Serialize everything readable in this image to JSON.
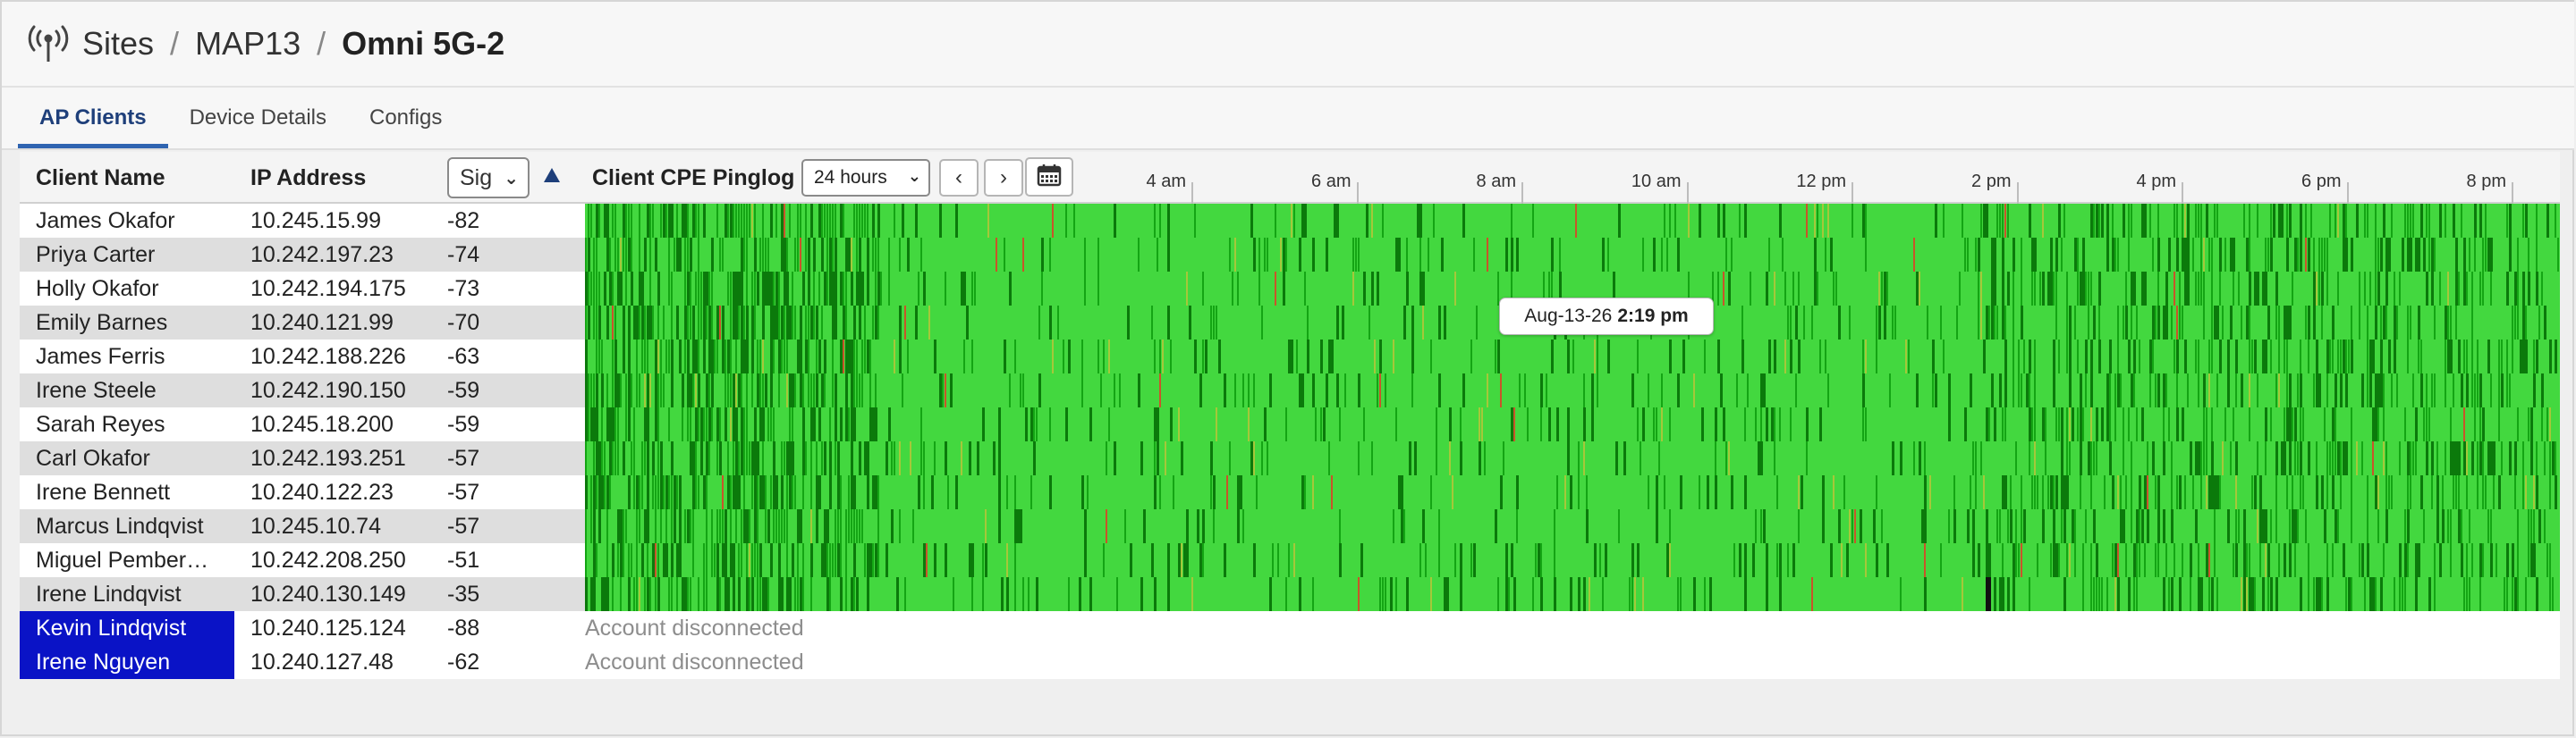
{
  "breadcrumb": {
    "icon": "wifi-antenna-icon",
    "items": [
      "Sites",
      "MAP13"
    ],
    "current": "Omni 5G-2",
    "separator": "/"
  },
  "tabs": [
    {
      "label": "AP Clients",
      "active": true
    },
    {
      "label": "Device Details",
      "active": false
    },
    {
      "label": "Configs",
      "active": false
    }
  ],
  "table": {
    "col_name": "Client Name",
    "col_ip": "IP Address",
    "col_sig_select": "Sig",
    "sort_direction": "ascending",
    "col_ping": "Client CPE Pinglog",
    "range_select": "24 hours",
    "prev_label": "‹",
    "next_label": "›",
    "calendar_icon": "calendar-icon"
  },
  "axis_ticks": [
    "4 am",
    "6 am",
    "8 am",
    "10 am",
    "12 pm",
    "2 pm",
    "4 pm",
    "6 pm",
    "8 pm"
  ],
  "clients": [
    {
      "name": "James Okafor",
      "ip": "10.245.15.99",
      "signal": "-82"
    },
    {
      "name": "Priya Carter",
      "ip": "10.242.197.23",
      "signal": "-74"
    },
    {
      "name": "Holly Okafor",
      "ip": "10.242.194.175",
      "signal": "-73"
    },
    {
      "name": "Emily Barnes",
      "ip": "10.240.121.99",
      "signal": "-70"
    },
    {
      "name": "James Ferris",
      "ip": "10.242.188.226",
      "signal": "-63"
    },
    {
      "name": "Irene Steele",
      "ip": "10.242.190.150",
      "signal": "-59"
    },
    {
      "name": "Sarah Reyes",
      "ip": "10.245.18.200",
      "signal": "-59"
    },
    {
      "name": "Carl Okafor",
      "ip": "10.242.193.251",
      "signal": "-57"
    },
    {
      "name": "Irene Bennett",
      "ip": "10.240.122.23",
      "signal": "-57"
    },
    {
      "name": "Marcus Lindqvist",
      "ip": "10.245.10.74",
      "signal": "-57"
    },
    {
      "name": "Miguel Pember…",
      "ip": "10.242.208.250",
      "signal": "-51"
    },
    {
      "name": "Irene Lindqvist",
      "ip": "10.240.130.149",
      "signal": "-35"
    }
  ],
  "disconnected_clients": [
    {
      "name": "Kevin Lindqvist",
      "ip": "10.240.125.124",
      "signal": "-88",
      "status": "Account disconnected"
    },
    {
      "name": "Irene Nguyen",
      "ip": "10.240.127.48",
      "signal": "-62",
      "status": "Account disconnected"
    }
  ],
  "tooltip": {
    "date": "Aug-13-26",
    "time": "2:19 pm"
  },
  "colors": {
    "ping_good": "#43d83f",
    "ping_fair": "#14a514",
    "ping_poor": "#0b7a0b",
    "ping_warn": "#a5c83a",
    "ping_bad": "#c8552a",
    "ping_missing": "#111111",
    "disconnected_highlight": "#0a13c6",
    "tab_active": "#2f64b1"
  }
}
